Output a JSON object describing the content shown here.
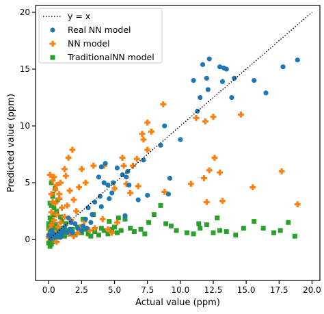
{
  "chart_data": {
    "type": "scatter",
    "xlabel": "Actual value (ppm)",
    "ylabel": "Predicted value (ppm)",
    "xlim": [
      -1,
      20.6
    ],
    "ylim": [
      -3.6,
      20.6
    ],
    "xticks": [
      0.0,
      2.5,
      5.0,
      7.5,
      10.0,
      12.5,
      15.0,
      17.5,
      20.0
    ],
    "xtick_labels": [
      "0.0",
      "2.5",
      "5.0",
      "7.5",
      "10.0",
      "12.5",
      "15.0",
      "17.5",
      "20.0"
    ],
    "yticks": [
      0,
      5,
      10,
      15,
      20
    ],
    "ytick_labels": [
      "0",
      "5",
      "10",
      "15",
      "20"
    ],
    "grid": false,
    "legend_position": "top-left",
    "reference_line": {
      "label": "y = x",
      "x": [
        0,
        20
      ],
      "y": [
        0,
        20
      ],
      "style": "dotted",
      "color": "#000000"
    },
    "series": [
      {
        "name": "Real NN model",
        "marker": "circle",
        "color": "#1f77b4",
        "points": [
          [
            12.2,
            15.9
          ],
          [
            11.7,
            15.4
          ],
          [
            13.0,
            15.2
          ],
          [
            13.3,
            15.1
          ],
          [
            13.5,
            15.0
          ],
          [
            18.9,
            15.8
          ],
          [
            17.8,
            15.2
          ],
          [
            11.0,
            14.0
          ],
          [
            12.0,
            14.2
          ],
          [
            14.1,
            14.2
          ],
          [
            13.2,
            13.9
          ],
          [
            15.6,
            14.0
          ],
          [
            16.5,
            12.9
          ],
          [
            12.1,
            13.2
          ],
          [
            11.5,
            12.5
          ],
          [
            13.9,
            12.5
          ],
          [
            11.3,
            11.3
          ],
          [
            8.8,
            10.0
          ],
          [
            10.0,
            8.8
          ],
          [
            8.5,
            8.3
          ],
          [
            7.2,
            7.0
          ],
          [
            9.2,
            5.4
          ],
          [
            9.1,
            4.0
          ],
          [
            6.8,
            3.5
          ],
          [
            7.5,
            3.9
          ],
          [
            5.6,
            5.7
          ],
          [
            4.9,
            5.0
          ],
          [
            4.5,
            4.8
          ],
          [
            4.2,
            5.0
          ],
          [
            3.8,
            5.5
          ],
          [
            4.0,
            6.4
          ],
          [
            4.3,
            6.7
          ],
          [
            5.2,
            6.3
          ],
          [
            6.0,
            6.0
          ],
          [
            6.1,
            4.8
          ],
          [
            5.9,
            5.5
          ],
          [
            4.8,
            4.1
          ],
          [
            3.9,
            3.8
          ],
          [
            3.5,
            3.3
          ],
          [
            4.6,
            3.6
          ],
          [
            4.0,
            2.9
          ],
          [
            5.8,
            2.1
          ],
          [
            3.0,
            2.8
          ],
          [
            2.8,
            1.8
          ],
          [
            3.2,
            1.5
          ],
          [
            2.6,
            1.2
          ],
          [
            2.2,
            1.0
          ],
          [
            2.5,
            0.8
          ],
          [
            1.8,
            0.6
          ],
          [
            1.5,
            1.9
          ],
          [
            1.6,
            0.9
          ],
          [
            1.2,
            1.1
          ],
          [
            1.0,
            0.5
          ],
          [
            0.8,
            0.7
          ],
          [
            0.6,
            0.3
          ],
          [
            0.4,
            0.5
          ],
          [
            0.3,
            0.2
          ],
          [
            0.2,
            0.1
          ],
          [
            0.5,
            0.2
          ],
          [
            0.1,
            0.3
          ],
          [
            0.3,
            0.6
          ],
          [
            0.7,
            0.4
          ],
          [
            0.9,
            0.2
          ],
          [
            1.1,
            0.8
          ],
          [
            1.4,
            0.6
          ],
          [
            2.0,
            1.4
          ],
          [
            3.3,
            2.2
          ],
          [
            2.9,
            1.0
          ],
          [
            1.7,
            1.5
          ],
          [
            0.2,
            0.8
          ],
          [
            0.0,
            0.4
          ]
        ]
      },
      {
        "name": "NN model",
        "marker": "plus",
        "color": "#ff7f0e",
        "points": [
          [
            8.7,
            11.9
          ],
          [
            7.5,
            10.3
          ],
          [
            7.8,
            9.5
          ],
          [
            7.1,
            9.3
          ],
          [
            7.2,
            8.8
          ],
          [
            7.5,
            7.9
          ],
          [
            11.2,
            10.7
          ],
          [
            11.9,
            10.4
          ],
          [
            12.5,
            10.8
          ],
          [
            14.6,
            11.0
          ],
          [
            12.2,
            6.1
          ],
          [
            10.8,
            4.9
          ],
          [
            12.6,
            7.2
          ],
          [
            13.0,
            5.9
          ],
          [
            11.8,
            5.4
          ],
          [
            12.0,
            3.3
          ],
          [
            13.2,
            3.4
          ],
          [
            17.7,
            6.0
          ],
          [
            18.9,
            3.1
          ],
          [
            15.5,
            4.6
          ],
          [
            8.8,
            4.2
          ],
          [
            6.4,
            6.5
          ],
          [
            6.7,
            7.1
          ],
          [
            5.6,
            7.2
          ],
          [
            5.7,
            6.5
          ],
          [
            5.9,
            4.9
          ],
          [
            5.0,
            4.5
          ],
          [
            6.2,
            4.1
          ],
          [
            6.8,
            4.7
          ],
          [
            4.2,
            6.5
          ],
          [
            3.4,
            6.5
          ],
          [
            2.5,
            6.2
          ],
          [
            2.8,
            5.0
          ],
          [
            1.8,
            7.9
          ],
          [
            1.5,
            7.2
          ],
          [
            1.2,
            6.2
          ],
          [
            0.9,
            5.0
          ],
          [
            0.6,
            4.8
          ],
          [
            0.4,
            5.5
          ],
          [
            0.1,
            5.7
          ],
          [
            0.3,
            5.2
          ],
          [
            1.3,
            5.6
          ],
          [
            1.6,
            4.3
          ],
          [
            1.9,
            3.5
          ],
          [
            2.3,
            4.6
          ],
          [
            1.4,
            3.0
          ],
          [
            2.1,
            2.5
          ],
          [
            0.8,
            3.6
          ],
          [
            0.5,
            3.2
          ],
          [
            0.3,
            3.3
          ],
          [
            1.0,
            2.8
          ],
          [
            0.2,
            2.4
          ],
          [
            0.6,
            2.2
          ],
          [
            1.2,
            2.0
          ],
          [
            1.7,
            1.7
          ],
          [
            2.4,
            1.1
          ],
          [
            3.5,
            1.0
          ],
          [
            3.1,
            0.8
          ],
          [
            4.1,
            1.8
          ],
          [
            4.5,
            0.9
          ],
          [
            5.2,
            1.5
          ],
          [
            4.8,
            0.6
          ],
          [
            2.7,
            1.6
          ],
          [
            0.9,
            1.5
          ],
          [
            0.4,
            1.7
          ],
          [
            0.7,
            1.1
          ],
          [
            0.2,
            1.3
          ],
          [
            0.1,
            0.9
          ],
          [
            0.5,
            0.6
          ],
          [
            0.8,
            0.4
          ],
          [
            1.1,
            0.7
          ],
          [
            1.5,
            0.5
          ],
          [
            1.9,
            0.3
          ],
          [
            2.2,
            0.6
          ],
          [
            0.3,
            0.1
          ],
          [
            0.6,
            -0.2
          ],
          [
            0.0,
            0.2
          ],
          [
            0.1,
            0.5
          ],
          [
            0.2,
            4.0
          ],
          [
            0.5,
            4.4
          ],
          [
            0.8,
            4.0
          ]
        ]
      },
      {
        "name": "TraditionalNN model",
        "marker": "square",
        "color": "#2ca02c",
        "points": [
          [
            0.2,
            5.0
          ],
          [
            0.5,
            4.5
          ],
          [
            0.3,
            4.0
          ],
          [
            0.1,
            3.2
          ],
          [
            0.2,
            3.0
          ],
          [
            0.6,
            2.5
          ],
          [
            0.4,
            2.2
          ],
          [
            0.1,
            1.9
          ],
          [
            0.3,
            1.7
          ],
          [
            0.2,
            1.5
          ],
          [
            0.1,
            1.2
          ],
          [
            0.4,
            1.0
          ],
          [
            0.2,
            0.8
          ],
          [
            0.1,
            0.6
          ],
          [
            0.3,
            0.4
          ],
          [
            0.2,
            0.2
          ],
          [
            0.1,
            0.0
          ],
          [
            0.3,
            -0.2
          ],
          [
            0.2,
            -0.4
          ],
          [
            0.1,
            -0.6
          ],
          [
            0.0,
            -0.3
          ],
          [
            0.0,
            0.3
          ],
          [
            0.0,
            1.0
          ],
          [
            0.0,
            1.4
          ],
          [
            0.5,
            1.3
          ],
          [
            0.6,
            0.9
          ],
          [
            0.7,
            0.5
          ],
          [
            0.8,
            0.2
          ],
          [
            0.9,
            1.0
          ],
          [
            1.0,
            1.6
          ],
          [
            1.1,
            0.6
          ],
          [
            1.2,
            0.3
          ],
          [
            1.4,
            0.8
          ],
          [
            1.6,
            0.5
          ],
          [
            1.8,
            0.9
          ],
          [
            2.0,
            0.4
          ],
          [
            2.2,
            1.1
          ],
          [
            2.5,
            0.6
          ],
          [
            2.8,
            0.9
          ],
          [
            3.0,
            0.5
          ],
          [
            3.2,
            0.3
          ],
          [
            3.5,
            0.7
          ],
          [
            3.8,
            0.4
          ],
          [
            4.0,
            1.0
          ],
          [
            4.2,
            0.8
          ],
          [
            4.5,
            0.5
          ],
          [
            4.8,
            0.9
          ],
          [
            5.0,
            1.1
          ],
          [
            5.2,
            0.6
          ],
          [
            5.5,
            0.8
          ],
          [
            5.8,
            1.8
          ],
          [
            6.2,
            1.0
          ],
          [
            6.5,
            0.7
          ],
          [
            7.0,
            0.9
          ],
          [
            7.3,
            0.5
          ],
          [
            8.0,
            2.2
          ],
          [
            8.5,
            3.0
          ],
          [
            7.6,
            1.5
          ],
          [
            8.9,
            1.4
          ],
          [
            9.3,
            1.2
          ],
          [
            9.7,
            0.8
          ],
          [
            10.5,
            0.6
          ],
          [
            11.0,
            0.5
          ],
          [
            11.5,
            1.0
          ],
          [
            12.0,
            1.3
          ],
          [
            12.5,
            0.6
          ],
          [
            13.0,
            0.8
          ],
          [
            13.5,
            0.7
          ],
          [
            14.2,
            0.4
          ],
          [
            14.8,
            1.0
          ],
          [
            15.6,
            1.6
          ],
          [
            16.3,
            1.0
          ],
          [
            17.1,
            0.6
          ],
          [
            17.6,
            0.8
          ],
          [
            18.2,
            1.5
          ],
          [
            18.7,
            0.3
          ],
          [
            12.8,
            1.9
          ],
          [
            11.4,
            1.4
          ],
          [
            3.4,
            2.2
          ],
          [
            2.6,
            1.8
          ],
          [
            4.6,
            1.6
          ],
          [
            5.3,
            1.9
          ],
          [
            0.4,
            2.8
          ],
          [
            0.7,
            3.5
          ],
          [
            0.3,
            3.8
          ],
          [
            0.9,
            2.0
          ],
          [
            1.3,
            1.4
          ]
        ]
      }
    ]
  }
}
